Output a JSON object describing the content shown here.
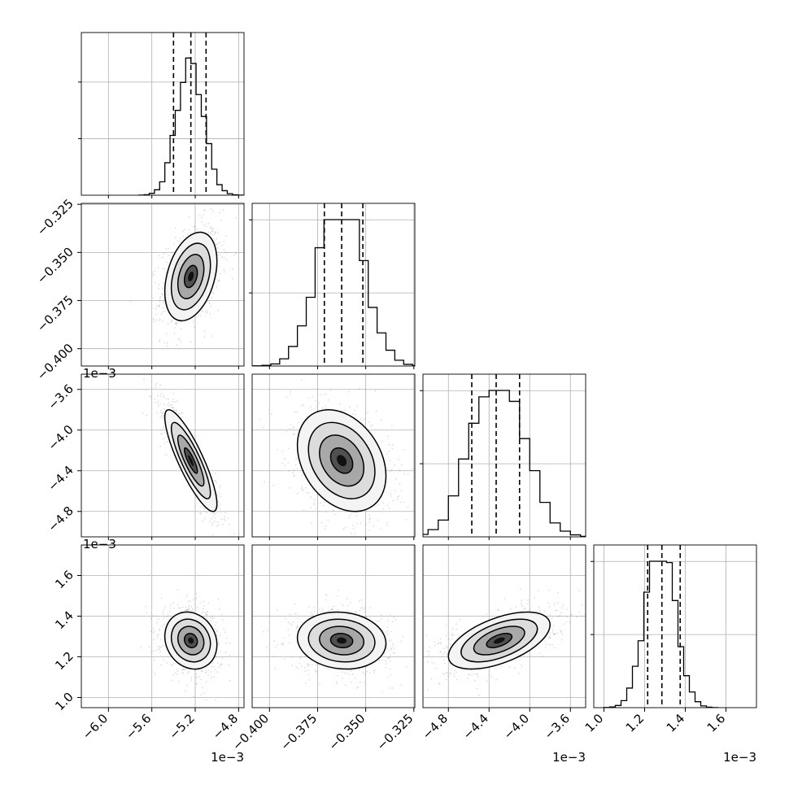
{
  "chart_data": {
    "type": "corner",
    "parameter_count": 4,
    "axis_ranges": [
      [
        -6.25,
        -4.75
      ],
      [
        -0.409,
        -0.3245
      ],
      [
        -5.05,
        -3.45
      ],
      [
        0.95,
        1.75
      ]
    ],
    "exponent_labels": [
      "1e−3",
      "1e−3",
      "1e−3",
      "1e−3"
    ],
    "column_exponent_labels": [
      "1e−3",
      "",
      "1e−3",
      "1e−3"
    ],
    "row_exponent_labels": [
      "",
      "1e−3",
      "1e−3",
      ""
    ],
    "tick_labels": [
      [
        {
          "v": -6.0,
          "t": "−6.0"
        },
        {
          "v": -5.6,
          "t": "−5.6"
        },
        {
          "v": -5.2,
          "t": "−5.2"
        },
        {
          "v": -4.8,
          "t": "−4.8"
        }
      ],
      [
        {
          "v": -0.4,
          "t": "−0.400"
        },
        {
          "v": -0.375,
          "t": "−0.375"
        },
        {
          "v": -0.35,
          "t": "−0.350"
        },
        {
          "v": -0.325,
          "t": "−0.325"
        }
      ],
      [
        {
          "v": -4.8,
          "t": "−4.8"
        },
        {
          "v": -4.4,
          "t": "−4.4"
        },
        {
          "v": -4.0,
          "t": "−4.0"
        },
        {
          "v": -3.6,
          "t": "−3.6"
        }
      ],
      [
        {
          "v": 1.0,
          "t": "1.0"
        },
        {
          "v": 1.2,
          "t": "1.2"
        },
        {
          "v": 1.4,
          "t": "1.4"
        },
        {
          "v": 1.6,
          "t": "1.6"
        }
      ]
    ],
    "means": [
      -5.24,
      -0.3625,
      -4.3,
      1.28
    ],
    "stds": [
      0.12,
      0.0115,
      0.25,
      0.07
    ],
    "quantiles_16_50_84": [
      [
        -5.4,
        -5.24,
        -5.1
      ],
      [
        -0.3715,
        -0.3625,
        -0.3515
      ],
      [
        -4.57,
        -4.33,
        -4.1
      ],
      [
        1.215,
        1.285,
        1.375
      ]
    ],
    "correlations": [
      {
        "row": 1,
        "col": 0,
        "r": 0.35
      },
      {
        "row": 2,
        "col": 0,
        "r": -0.85
      },
      {
        "row": 2,
        "col": 1,
        "r": -0.3
      },
      {
        "row": 3,
        "col": 0,
        "r": -0.15
      },
      {
        "row": 3,
        "col": 1,
        "r": -0.1
      },
      {
        "row": 3,
        "col": 2,
        "r": 0.55
      }
    ],
    "histogram_peak_frac": [
      1.15,
      0.89,
      0.89,
      0.89
    ],
    "grid": true,
    "colors": {
      "marks": "#000000",
      "grid": "#b0b0b0",
      "scatter": "#808080"
    }
  }
}
